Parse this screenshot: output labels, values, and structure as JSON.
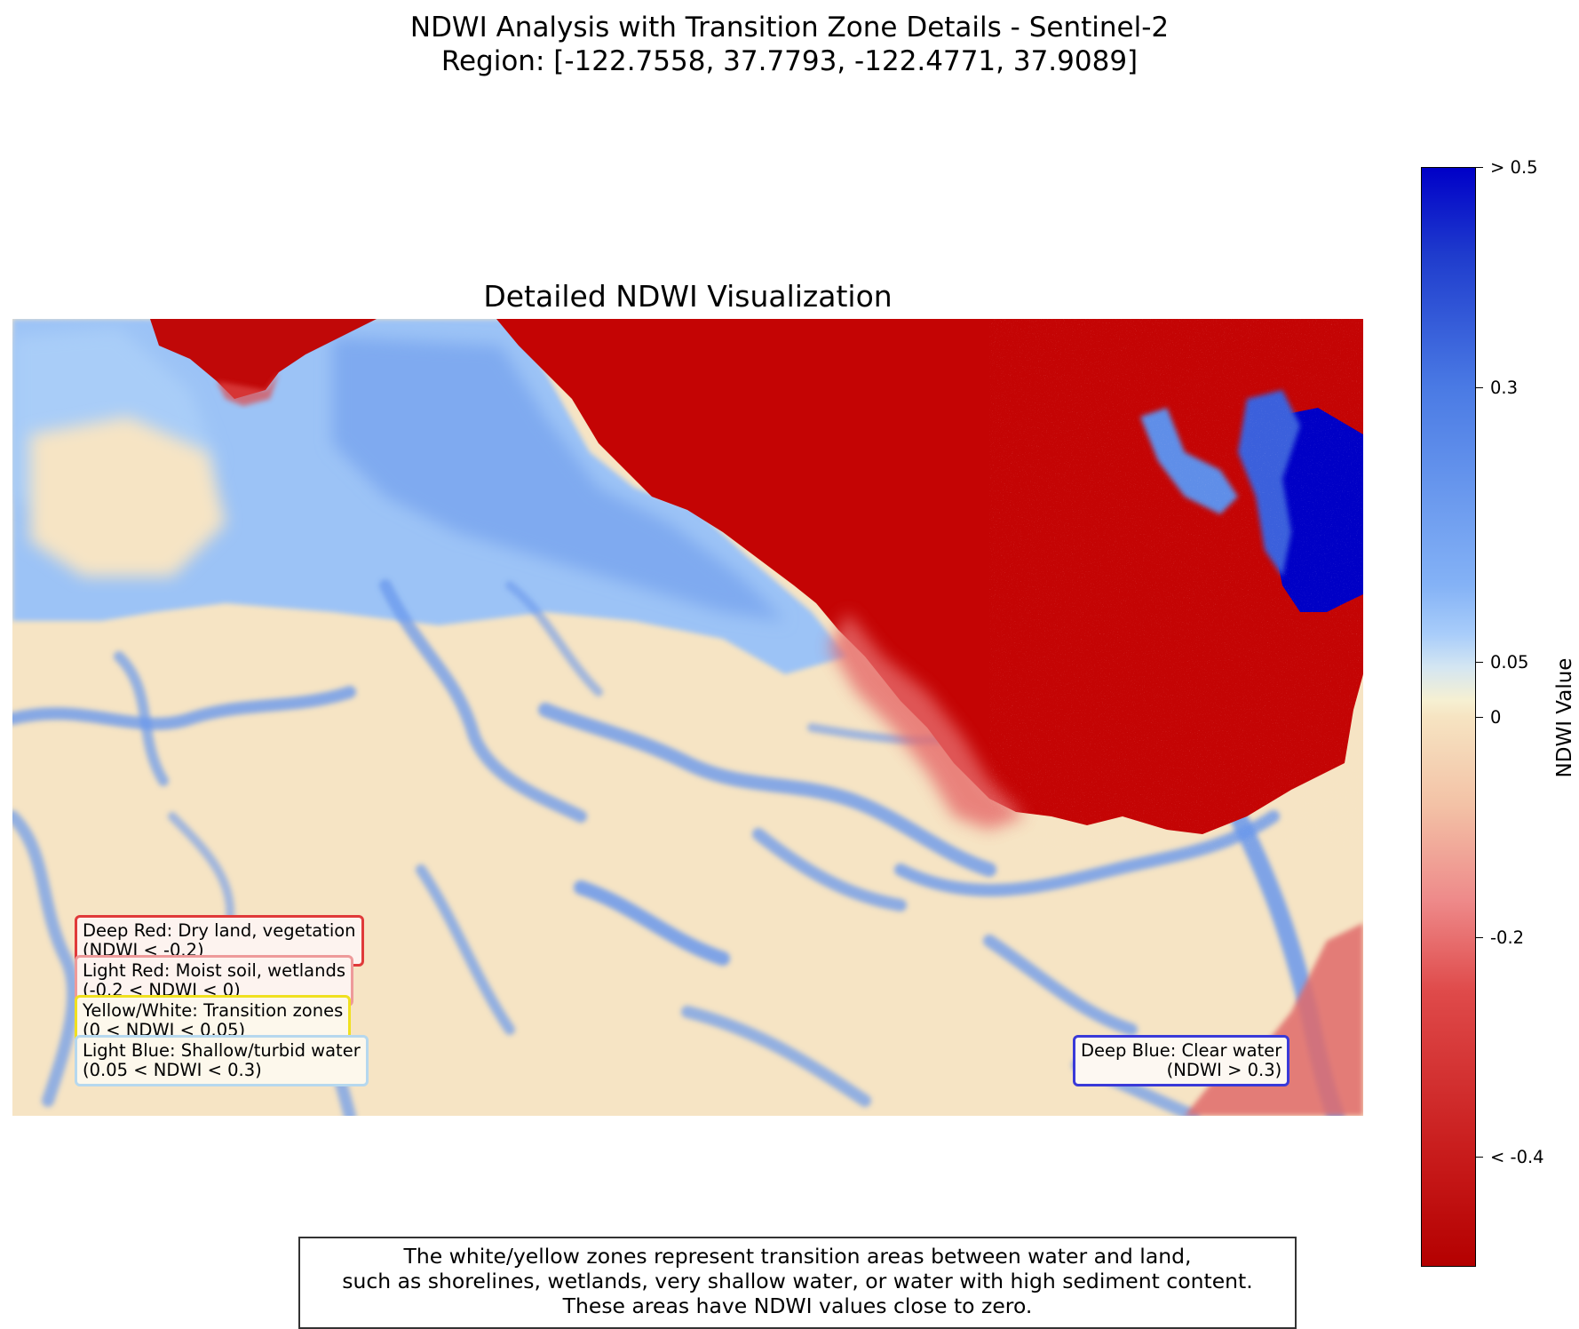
{
  "figure": {
    "suptitle_line1": "NDWI Analysis with Transition Zone Details - Sentinel-2",
    "suptitle_line2": "Region: [-122.7558, 37.7793, -122.4771, 37.9089]",
    "axes_title": "Detailed NDWI Visualization"
  },
  "legend": {
    "deep_red": {
      "line1": "Deep Red: Dry land, vegetation",
      "line2": "(NDWI < -0.2)",
      "border": "#e03a3a"
    },
    "light_red": {
      "line1": "Light Red: Moist soil, wetlands",
      "line2": "(-0.2 < NDWI < 0)",
      "border": "#ee9a9a"
    },
    "yellow_white": {
      "line1": "Yellow/White: Transition zones",
      "line2": "(0 < NDWI < 0.05)",
      "border": "#f0e020"
    },
    "light_blue": {
      "line1": "Light Blue: Shallow/turbid water",
      "line2": "(0.05 < NDWI < 0.3)",
      "border": "#b6d8ee"
    },
    "deep_blue": {
      "line1": "Deep Blue: Clear water",
      "line2": "(NDWI > 0.3)",
      "border": "#3a3ad8"
    }
  },
  "colorbar": {
    "label": "NDWI Value",
    "ticks": [
      "> 0.5",
      "0.3",
      "0.05",
      "0",
      "-0.2",
      "< -0.4"
    ],
    "tick_values": [
      0.5,
      0.3,
      0.05,
      0,
      -0.2,
      -0.4
    ],
    "range": [
      -0.5,
      0.5
    ],
    "colors": {
      "dry_land": "#b40000",
      "moist_soil": "#ee8a8a",
      "transition": "#f6edd0",
      "shallow_water": "#84b2f6",
      "clear_water": "#0000c8"
    }
  },
  "note": {
    "line1": "The white/yellow zones represent transition areas between water and land,",
    "line2": "such as shorelines, wetlands, very shallow water, or water with high sediment content.",
    "line3": "These areas have NDWI values close to zero."
  }
}
